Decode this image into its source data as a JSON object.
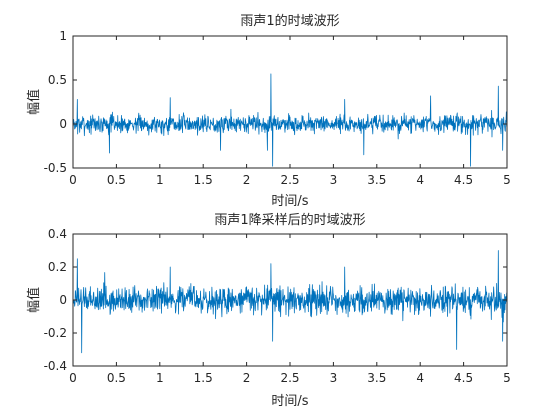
{
  "chart_data": [
    {
      "type": "line",
      "title": "雨声1的时域波形",
      "xlabel": "时间/s",
      "ylabel": "幅值",
      "xlim": [
        0,
        5
      ],
      "ylim": [
        -0.5,
        1
      ],
      "xticks": [
        "0",
        "0.5",
        "1",
        "1.5",
        "2",
        "2.5",
        "3",
        "3.5",
        "4",
        "4.5",
        "5"
      ],
      "yticks": [
        "-0.5",
        "0",
        "0.5",
        "1"
      ],
      "grid": false,
      "legend": "none",
      "series": [
        {
          "color": "#0072BD",
          "signal": "dense noise waveform centered at 0",
          "typical_band": [
            -0.15,
            0.15
          ],
          "peaks": [
            {
              "x": 0.05,
              "y": 0.28
            },
            {
              "x": 0.42,
              "y": -0.33
            },
            {
              "x": 1.12,
              "y": 0.3
            },
            {
              "x": 1.7,
              "y": -0.3
            },
            {
              "x": 2.24,
              "y": -0.3
            },
            {
              "x": 2.28,
              "y": 0.57
            },
            {
              "x": 2.3,
              "y": -0.48
            },
            {
              "x": 3.13,
              "y": 0.28
            },
            {
              "x": 3.35,
              "y": -0.35
            },
            {
              "x": 4.12,
              "y": 0.32
            },
            {
              "x": 4.58,
              "y": -0.48
            },
            {
              "x": 4.9,
              "y": 0.43
            },
            {
              "x": 4.95,
              "y": -0.3
            }
          ]
        }
      ]
    },
    {
      "type": "line",
      "title": "雨声1降采样后的时域波形",
      "xlabel": "时间/s",
      "ylabel": "幅值",
      "xlim": [
        0,
        5
      ],
      "ylim": [
        -0.4,
        0.4
      ],
      "xticks": [
        "0",
        "0.5",
        "1",
        "1.5",
        "2",
        "2.5",
        "3",
        "3.5",
        "4",
        "4.5",
        "5"
      ],
      "yticks": [
        "-0.4",
        "-0.2",
        "0",
        "0.2",
        "0.4"
      ],
      "grid": false,
      "legend": "none",
      "series": [
        {
          "color": "#0072BD",
          "signal": "dense noise waveform centered at 0",
          "typical_band": [
            -0.12,
            0.12
          ],
          "peaks": [
            {
              "x": 0.05,
              "y": 0.25
            },
            {
              "x": 0.1,
              "y": -0.32
            },
            {
              "x": 1.12,
              "y": 0.2
            },
            {
              "x": 2.28,
              "y": 0.22
            },
            {
              "x": 2.3,
              "y": -0.25
            },
            {
              "x": 3.13,
              "y": 0.2
            },
            {
              "x": 4.42,
              "y": -0.3
            },
            {
              "x": 4.9,
              "y": 0.3
            },
            {
              "x": 4.95,
              "y": -0.25
            }
          ]
        }
      ]
    }
  ]
}
